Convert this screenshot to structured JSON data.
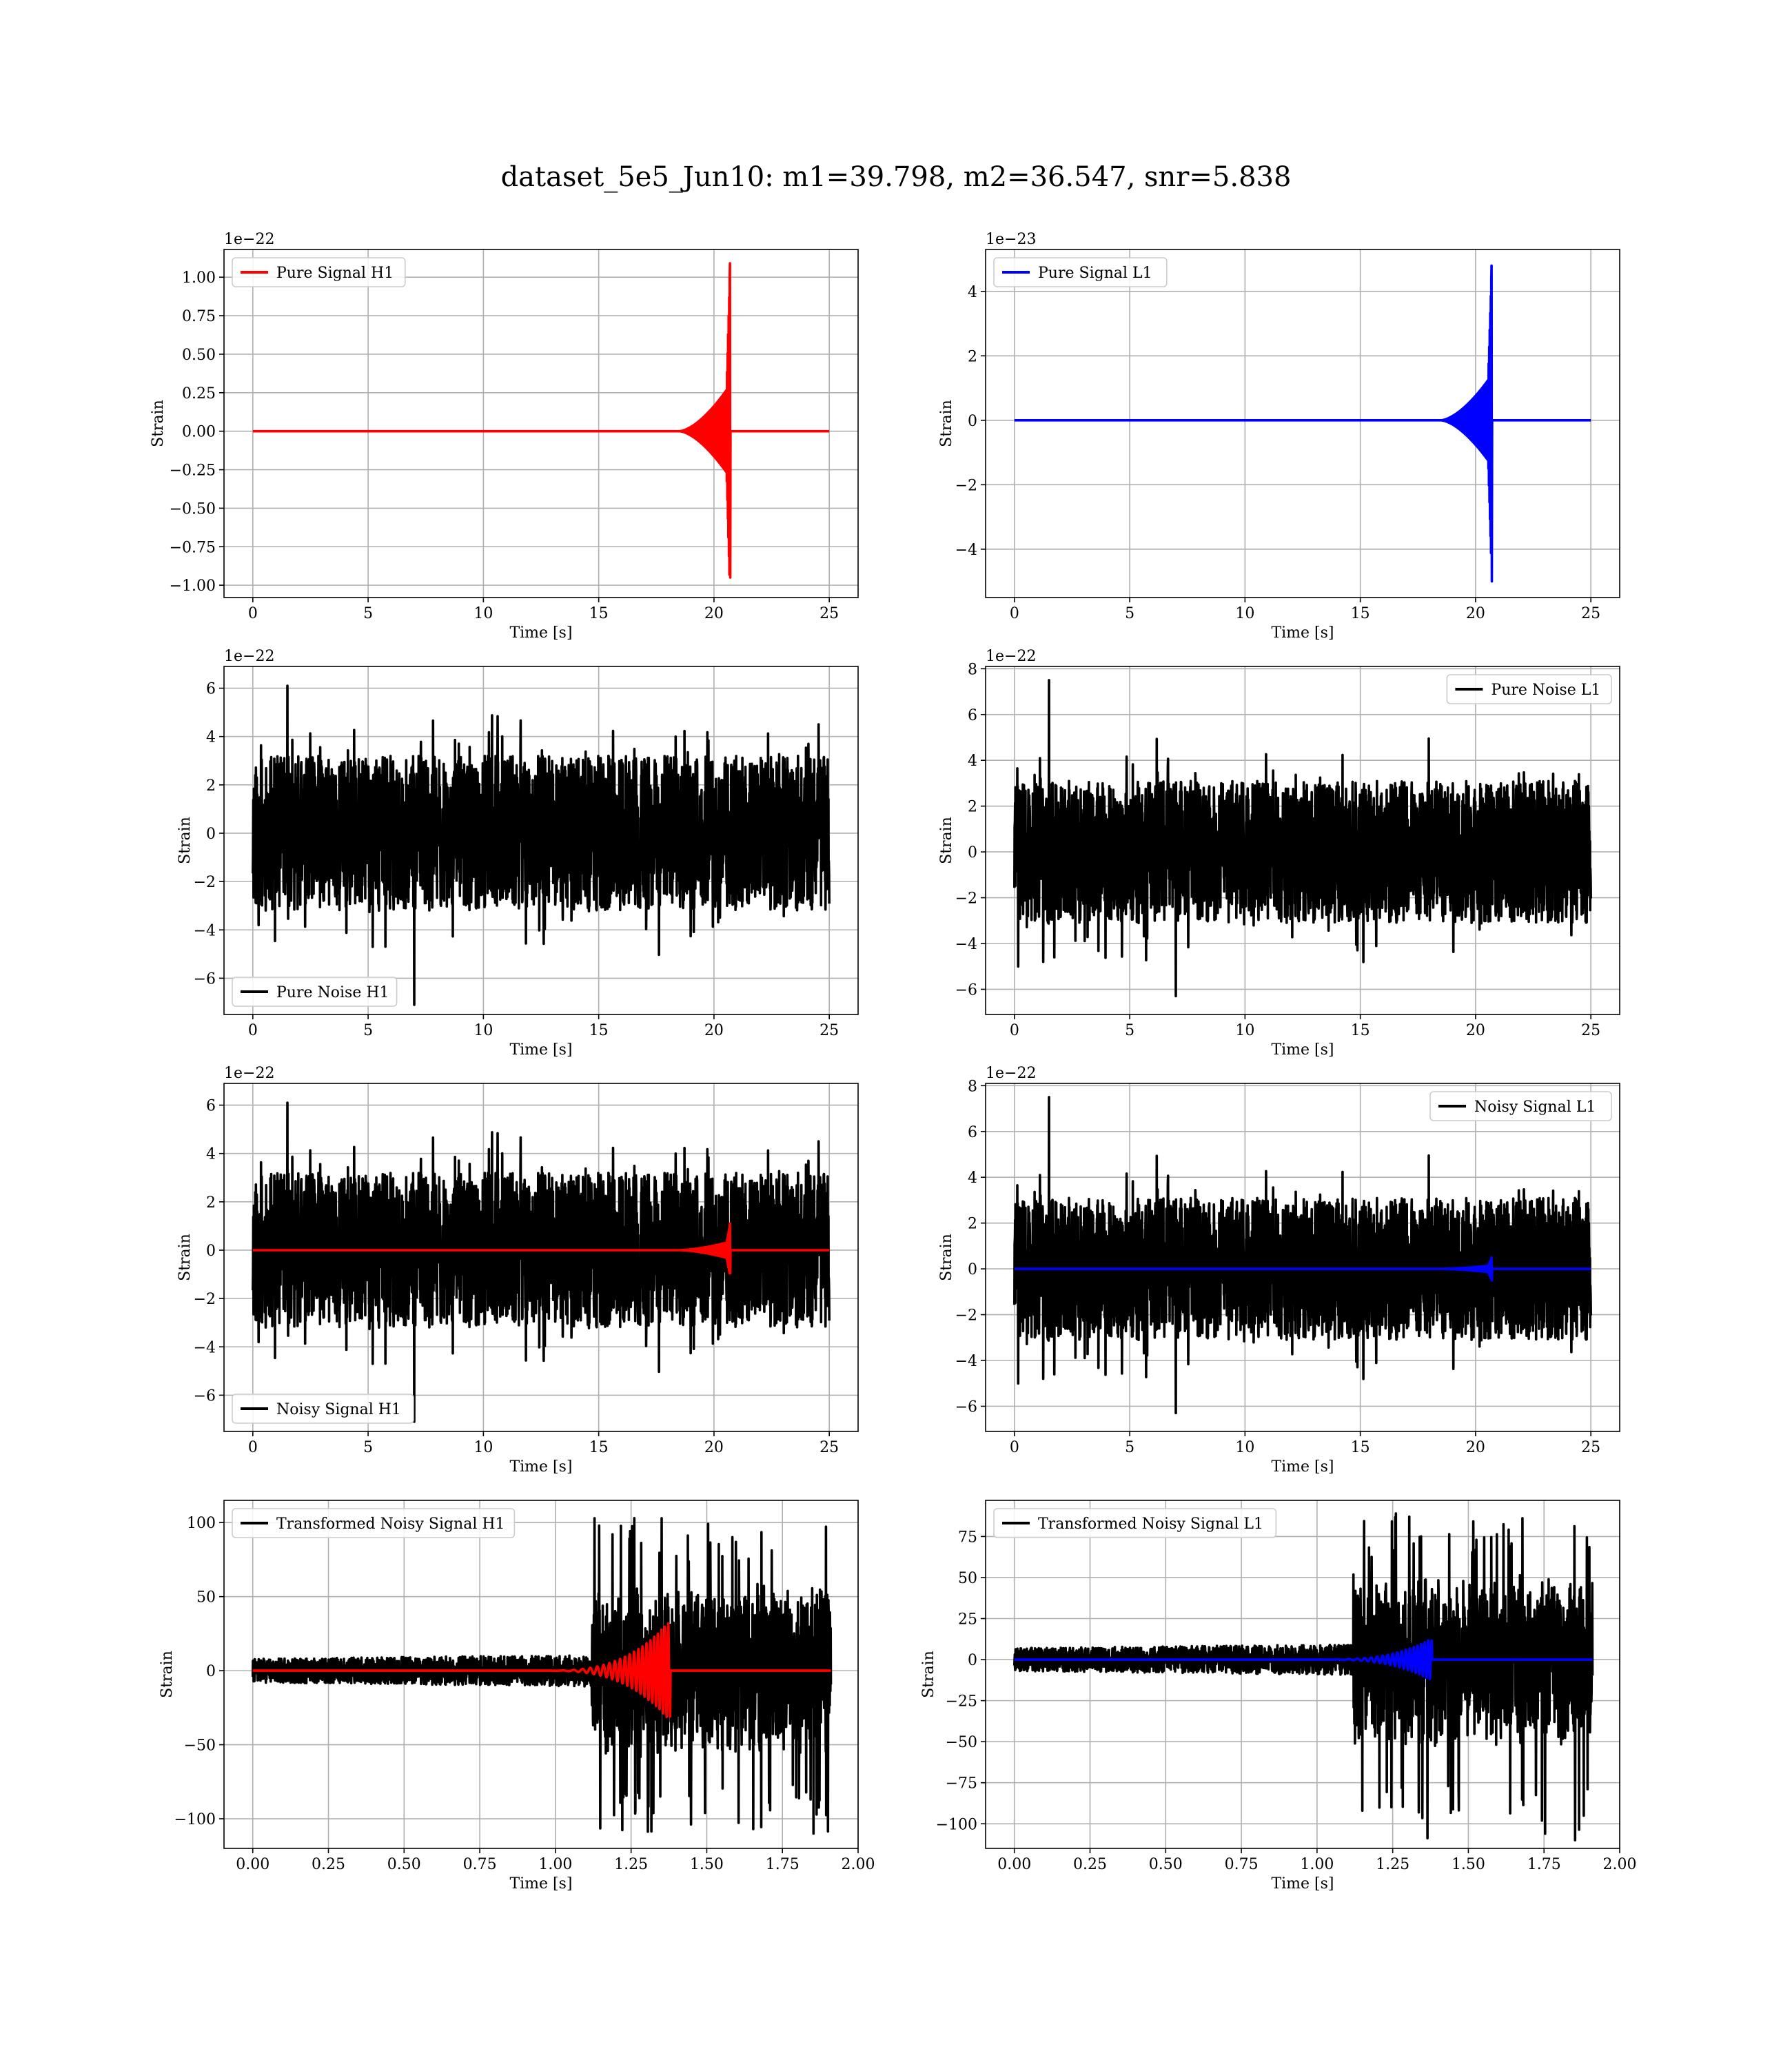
{
  "figure": {
    "title": "dataset_5e5_Jun10: m1=39.798, m2=36.547, snr=5.838",
    "background": "#ffffff"
  },
  "chart_data": [
    {
      "type": "line",
      "id": "pure-signal-h1",
      "offset_label": "1e−22",
      "xlabel": "Time [s]",
      "ylabel": "Strain",
      "xlim": [
        -1.25,
        26.25
      ],
      "ylim": [
        -1.08,
        1.18
      ],
      "xticks": [
        0,
        5,
        10,
        15,
        20,
        25
      ],
      "xtick_labels": [
        "0",
        "5",
        "10",
        "15",
        "20",
        "25"
      ],
      "yticks": [
        -1.0,
        -0.75,
        -0.5,
        -0.25,
        0.0,
        0.25,
        0.5,
        0.75,
        1.0
      ],
      "ytick_labels": [
        "−1.00",
        "−0.75",
        "−0.50",
        "−0.25",
        "0.00",
        "0.25",
        "0.50",
        "0.75",
        "1.00"
      ],
      "grid": true,
      "legend_position": "upper-left",
      "series": [
        {
          "name": "Pure Signal H1",
          "color": "#ff0000",
          "kind": "chirp",
          "x_start": 0,
          "x_end": 25,
          "t_merger": 20.7,
          "t_grow": 18.5,
          "amp_early": 0.3,
          "amp_peak_pos": 1.09,
          "amp_peak_neg": -0.95,
          "amp_ringdown": 0.0,
          "noise_amp": 0
        }
      ]
    },
    {
      "type": "line",
      "id": "pure-signal-l1",
      "offset_label": "1e−23",
      "xlabel": "Time [s]",
      "ylabel": "Strain",
      "xlim": [
        -1.25,
        26.25
      ],
      "ylim": [
        -5.5,
        5.3
      ],
      "xticks": [
        0,
        5,
        10,
        15,
        20,
        25
      ],
      "xtick_labels": [
        "0",
        "5",
        "10",
        "15",
        "20",
        "25"
      ],
      "yticks": [
        -4,
        -2,
        0,
        2,
        4
      ],
      "ytick_labels": [
        "−4",
        "−2",
        "0",
        "2",
        "4"
      ],
      "grid": true,
      "legend_position": "upper-left",
      "series": [
        {
          "name": "Pure Signal L1",
          "color": "#0000ff",
          "kind": "chirp",
          "x_start": 0,
          "x_end": 25,
          "t_merger": 20.7,
          "t_grow": 18.5,
          "amp_early": 1.4,
          "amp_peak_pos": 4.8,
          "amp_peak_neg": -5.0,
          "amp_ringdown": 0.0,
          "noise_amp": 0
        }
      ]
    },
    {
      "type": "line",
      "id": "pure-noise-h1",
      "offset_label": "1e−22",
      "xlabel": "Time [s]",
      "ylabel": "Strain",
      "xlim": [
        -1.25,
        26.25
      ],
      "ylim": [
        -7.5,
        6.9
      ],
      "xticks": [
        0,
        5,
        10,
        15,
        20,
        25
      ],
      "xtick_labels": [
        "0",
        "5",
        "10",
        "15",
        "20",
        "25"
      ],
      "yticks": [
        -6,
        -4,
        -2,
        0,
        2,
        4,
        6
      ],
      "ytick_labels": [
        "−6",
        "−4",
        "−2",
        "0",
        "2",
        "4",
        "6"
      ],
      "grid": true,
      "legend_position": "lower-left",
      "series": [
        {
          "name": "Pure Noise H1",
          "color": "#000000",
          "kind": "noise",
          "x_start": 0,
          "x_end": 25,
          "band": 3.2,
          "spike_max": 6.1,
          "spike_min": -7.1,
          "seed": 11
        }
      ]
    },
    {
      "type": "line",
      "id": "pure-noise-l1",
      "offset_label": "1e−22",
      "xlabel": "Time [s]",
      "ylabel": "Strain",
      "xlim": [
        -1.25,
        26.25
      ],
      "ylim": [
        -7.1,
        8.1
      ],
      "xticks": [
        0,
        5,
        10,
        15,
        20,
        25
      ],
      "xtick_labels": [
        "0",
        "5",
        "10",
        "15",
        "20",
        "25"
      ],
      "yticks": [
        -6,
        -4,
        -2,
        0,
        2,
        4,
        6,
        8
      ],
      "ytick_labels": [
        "−6",
        "−4",
        "−2",
        "0",
        "2",
        "4",
        "6",
        "8"
      ],
      "grid": true,
      "legend_position": "upper-right",
      "series": [
        {
          "name": "Pure Noise L1",
          "color": "#000000",
          "kind": "noise",
          "x_start": 0,
          "x_end": 25,
          "band": 3.1,
          "spike_max": 7.5,
          "spike_min": -6.3,
          "seed": 29
        }
      ]
    },
    {
      "type": "line",
      "id": "noisy-signal-h1",
      "offset_label": "1e−22",
      "xlabel": "Time [s]",
      "ylabel": "Strain",
      "xlim": [
        -1.25,
        26.25
      ],
      "ylim": [
        -7.5,
        6.9
      ],
      "xticks": [
        0,
        5,
        10,
        15,
        20,
        25
      ],
      "xtick_labels": [
        "0",
        "5",
        "10",
        "15",
        "20",
        "25"
      ],
      "yticks": [
        -6,
        -4,
        -2,
        0,
        2,
        4,
        6
      ],
      "ytick_labels": [
        "−6",
        "−4",
        "−2",
        "0",
        "2",
        "4",
        "6"
      ],
      "grid": true,
      "legend_position": "lower-left",
      "series": [
        {
          "name": "Noisy Signal H1",
          "color": "#000000",
          "kind": "noise",
          "x_start": 0,
          "x_end": 25,
          "band": 3.2,
          "spike_max": 6.1,
          "spike_min": -7.1,
          "seed": 11
        },
        {
          "name": "",
          "color": "#ff0000",
          "kind": "chirp",
          "x_start": 0,
          "x_end": 25,
          "t_merger": 20.7,
          "t_grow": 18.5,
          "amp_early": 0.35,
          "amp_peak_pos": 1.1,
          "amp_peak_neg": -0.95,
          "amp_ringdown": 0.0,
          "noise_amp": 0
        }
      ]
    },
    {
      "type": "line",
      "id": "noisy-signal-l1",
      "offset_label": "1e−22",
      "xlabel": "Time [s]",
      "ylabel": "Strain",
      "xlim": [
        -1.25,
        26.25
      ],
      "ylim": [
        -7.1,
        8.1
      ],
      "xticks": [
        0,
        5,
        10,
        15,
        20,
        25
      ],
      "xtick_labels": [
        "0",
        "5",
        "10",
        "15",
        "20",
        "25"
      ],
      "yticks": [
        -6,
        -4,
        -2,
        0,
        2,
        4,
        6,
        8
      ],
      "ytick_labels": [
        "−6",
        "−4",
        "−2",
        "0",
        "2",
        "4",
        "6",
        "8"
      ],
      "grid": true,
      "legend_position": "upper-right",
      "series": [
        {
          "name": "Noisy Signal L1",
          "color": "#000000",
          "kind": "noise",
          "x_start": 0,
          "x_end": 25,
          "band": 3.1,
          "spike_max": 7.5,
          "spike_min": -6.3,
          "seed": 29
        },
        {
          "name": "",
          "color": "#0000ff",
          "kind": "chirp",
          "x_start": 0,
          "x_end": 25,
          "t_merger": 20.7,
          "t_grow": 18.5,
          "amp_early": 0.15,
          "amp_peak_pos": 0.5,
          "amp_peak_neg": -0.5,
          "amp_ringdown": 0.0,
          "noise_amp": 0
        }
      ]
    },
    {
      "type": "line",
      "id": "transformed-noisy-signal-h1",
      "offset_label": "",
      "xlabel": "Time [s]",
      "ylabel": "Strain",
      "xlim": [
        -0.095,
        2.0
      ],
      "ylim": [
        -120,
        115
      ],
      "xticks": [
        0.0,
        0.25,
        0.5,
        0.75,
        1.0,
        1.25,
        1.5,
        1.75,
        2.0
      ],
      "xtick_labels": [
        "0.00",
        "0.25",
        "0.50",
        "0.75",
        "1.00",
        "1.25",
        "1.50",
        "1.75",
        "2.00"
      ],
      "yticks": [
        -100,
        -50,
        0,
        50,
        100
      ],
      "ytick_labels": [
        "−100",
        "−50",
        "0",
        "50",
        "100"
      ],
      "grid": true,
      "legend_position": "upper-left",
      "series": [
        {
          "name": "Transformed Noisy Signal H1",
          "color": "#000000",
          "kind": "burst",
          "x_start": 0,
          "x_end": 1.91,
          "quiet_amp": 8,
          "loud_start": 1.12,
          "loud_amp": 60,
          "spike_max": 103,
          "spike_min": -110,
          "seed": 7
        },
        {
          "name": "",
          "color": "#ff0000",
          "kind": "osc",
          "x_start": 0,
          "x_end": 1.91,
          "t_peak": 1.37,
          "t_start": 0.95,
          "amp_peak_pos": 32,
          "amp_peak_neg": -28
        }
      ]
    },
    {
      "type": "line",
      "id": "transformed-noisy-signal-l1",
      "offset_label": "",
      "xlabel": "Time [s]",
      "ylabel": "Strain",
      "xlim": [
        -0.095,
        2.0
      ],
      "ylim": [
        -115,
        97
      ],
      "xticks": [
        0.0,
        0.25,
        0.5,
        0.75,
        1.0,
        1.25,
        1.5,
        1.75,
        2.0
      ],
      "xtick_labels": [
        "0.00",
        "0.25",
        "0.50",
        "0.75",
        "1.00",
        "1.25",
        "1.50",
        "1.75",
        "2.00"
      ],
      "yticks": [
        -100,
        -75,
        -50,
        -25,
        0,
        25,
        50,
        75
      ],
      "ytick_labels": [
        "−100",
        "−75",
        "−50",
        "−25",
        "0",
        "25",
        "50",
        "75"
      ],
      "grid": true,
      "legend_position": "upper-left",
      "series": [
        {
          "name": "Transformed Noisy Signal L1",
          "color": "#000000",
          "kind": "burst",
          "x_start": 0,
          "x_end": 1.91,
          "quiet_amp": 7,
          "loud_start": 1.12,
          "loud_amp": 55,
          "spike_max": 89,
          "spike_min": -110,
          "seed": 13
        },
        {
          "name": "",
          "color": "#0000ff",
          "kind": "osc",
          "x_start": 0,
          "x_end": 1.91,
          "t_peak": 1.37,
          "t_start": 1.0,
          "amp_peak_pos": 12,
          "amp_peak_neg": -14
        }
      ]
    }
  ]
}
